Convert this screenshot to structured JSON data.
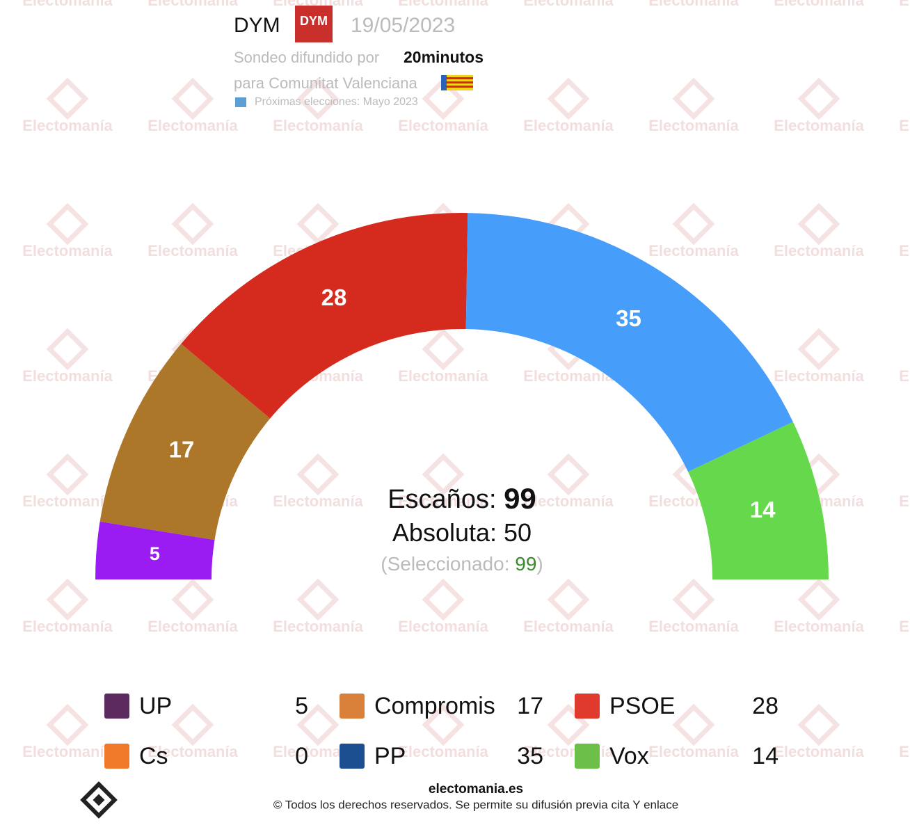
{
  "header": {
    "pollster": "DYM",
    "logo_text": "DYM",
    "date": "19/05/2023",
    "source_prefix": "Sondeo difundido por",
    "source": "20minutos",
    "region": "para Comunitat Valenciana",
    "next_election": "Próximas elecciones: Mayo 2023"
  },
  "watermark": "Electomanía",
  "chart_data": {
    "type": "semicircle",
    "categories": [
      "UP",
      "Compromis",
      "PSOE",
      "Cs",
      "PP",
      "Vox"
    ],
    "values": [
      5,
      17,
      28,
      0,
      35,
      14
    ],
    "colors": [
      "#9a1cf2",
      "#ad772a",
      "#d52b1e",
      "#f07a2a",
      "#479dfa",
      "#66d84c"
    ],
    "seats_label": "Escaños:",
    "total_seats": 99,
    "majority_label": "Absoluta:",
    "majority": 50,
    "selected_prefix": "(Seleccionado:",
    "selected": 99,
    "selected_suffix": ")"
  },
  "footer": {
    "site": "electomania.es",
    "copyright": "© Todos los derechos reservados. Se permite su difusión previa cita Y enlace"
  }
}
